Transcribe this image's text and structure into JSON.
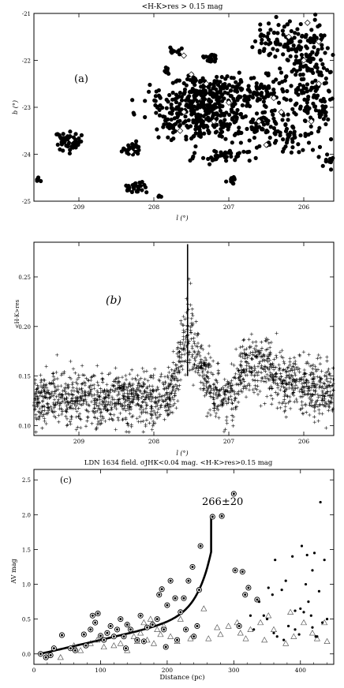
{
  "chart_data": [
    {
      "id": "a",
      "type": "scatter",
      "title": "<H-K>res >  0.15 mag",
      "panel_label": "(a)",
      "xlabel": "l (°)",
      "ylabel": "b (°)",
      "xlim": [
        209.6,
        205.6
      ],
      "ylim": [
        -25.0,
        -21.0
      ],
      "x_ticks": [
        209,
        208,
        207,
        206
      ],
      "y_ticks": [
        -21,
        -22,
        -23,
        -24,
        -25
      ],
      "clusters": [
        {
          "x": 209.55,
          "y": -24.55,
          "n": 6,
          "sx": 0.02,
          "sy": 0.04
        },
        {
          "x": 209.15,
          "y": -23.72,
          "n": 50,
          "sx": 0.09,
          "sy": 0.1
        },
        {
          "x": 208.28,
          "y": -23.9,
          "n": 26,
          "sx": 0.07,
          "sy": 0.07
        },
        {
          "x": 208.25,
          "y": -24.72,
          "n": 30,
          "sx": 0.08,
          "sy": 0.06
        },
        {
          "x": 207.9,
          "y": -24.9,
          "n": 3,
          "sx": 0.02,
          "sy": 0.02
        },
        {
          "x": 207.72,
          "y": -21.8,
          "n": 12,
          "sx": 0.04,
          "sy": 0.05
        },
        {
          "x": 207.8,
          "y": -22.2,
          "n": 8,
          "sx": 0.05,
          "sy": 0.05
        },
        {
          "x": 207.25,
          "y": -21.95,
          "n": 22,
          "sx": 0.07,
          "sy": 0.06
        },
        {
          "x": 207.45,
          "y": -22.4,
          "n": 15,
          "sx": 0.06,
          "sy": 0.05
        },
        {
          "x": 207.4,
          "y": -22.8,
          "n": 150,
          "sx": 0.32,
          "sy": 0.16
        },
        {
          "x": 207.42,
          "y": -23.3,
          "n": 200,
          "sx": 0.35,
          "sy": 0.22
        },
        {
          "x": 207.05,
          "y": -22.6,
          "n": 70,
          "sx": 0.22,
          "sy": 0.15
        },
        {
          "x": 207.1,
          "y": -24.05,
          "n": 45,
          "sx": 0.22,
          "sy": 0.09
        },
        {
          "x": 206.95,
          "y": -24.55,
          "n": 10,
          "sx": 0.04,
          "sy": 0.05
        },
        {
          "x": 206.55,
          "y": -23.3,
          "n": 90,
          "sx": 0.3,
          "sy": 0.18
        },
        {
          "x": 206.55,
          "y": -22.7,
          "n": 60,
          "sx": 0.18,
          "sy": 0.14
        },
        {
          "x": 206.3,
          "y": -21.6,
          "n": 60,
          "sx": 0.2,
          "sy": 0.18
        },
        {
          "x": 206.0,
          "y": -21.9,
          "n": 120,
          "sx": 0.22,
          "sy": 0.4
        },
        {
          "x": 205.9,
          "y": -22.8,
          "n": 100,
          "sx": 0.22,
          "sy": 0.4
        },
        {
          "x": 206.2,
          "y": -23.7,
          "n": 35,
          "sx": 0.15,
          "sy": 0.12
        },
        {
          "x": 205.75,
          "y": -23.1,
          "n": 10,
          "sx": 0.05,
          "sy": 0.05
        },
        {
          "x": 205.7,
          "y": -24.15,
          "n": 10,
          "sx": 0.05,
          "sy": 0.06
        }
      ],
      "diamonds": [
        [
          209.1,
          -23.7
        ],
        [
          207.5,
          -22.3
        ],
        [
          207.4,
          -22.8
        ],
        [
          207.6,
          -23.1
        ],
        [
          207.2,
          -23.3
        ],
        [
          207.0,
          -22.9
        ],
        [
          207.65,
          -23.5
        ],
        [
          206.6,
          -23.3
        ],
        [
          206.4,
          -22.8
        ],
        [
          206.2,
          -21.5
        ],
        [
          205.95,
          -21.2
        ],
        [
          206.0,
          -22.0
        ],
        [
          205.8,
          -22.5
        ],
        [
          206.3,
          -23.1
        ],
        [
          205.9,
          -23.3
        ],
        [
          207.6,
          -21.9
        ],
        [
          206.5,
          -23.8
        ],
        [
          208.3,
          -23.95
        ],
        [
          207.3,
          -22.5
        ],
        [
          205.8,
          -21.6
        ]
      ]
    },
    {
      "id": "b",
      "type": "scatter",
      "panel_label": "(b)",
      "xlabel": "l (°)",
      "ylabel": "<H-K>res",
      "xlim": [
        209.6,
        205.6
      ],
      "ylim": [
        0.09,
        0.285
      ],
      "x_ticks": [
        209,
        208,
        207,
        206
      ],
      "y_ticks": [
        0.1,
        0.15,
        0.2,
        0.25
      ],
      "baseline": 0.127,
      "baseline_scatter": 0.013,
      "n_points": 1900,
      "bumps": [
        {
          "l": 207.55,
          "amp": 0.09,
          "width": 0.1
        },
        {
          "l": 207.35,
          "amp": 0.03,
          "width": 0.1
        },
        {
          "l": 206.65,
          "amp": 0.045,
          "width": 0.2
        },
        {
          "l": 206.1,
          "amp": 0.02,
          "width": 0.35
        }
      ],
      "spike": {
        "l": 207.55,
        "top": 0.283,
        "bottom": 0.15
      }
    },
    {
      "id": "c",
      "type": "scatter",
      "title": "LDN 1634 field. σJHK<0.04 mag. <H-K>res>0.15 mag",
      "panel_label": "(c)",
      "annotation": "266±20",
      "xlabel": "Distance (pc)",
      "ylabel": "AV mag",
      "xlim": [
        0,
        450
      ],
      "ylim": [
        -0.15,
        2.65
      ],
      "x_ticks": [
        0,
        100,
        200,
        300,
        400
      ],
      "y_ticks": [
        0.0,
        0.5,
        1.0,
        1.5,
        2.0,
        2.5
      ],
      "curve": {
        "d0": 10,
        "d_end": 266,
        "a": 0.01,
        "b": 0.0024,
        "asym": 292,
        "cx": 5
      },
      "stars": [
        [
          10,
          0.0
        ],
        [
          18,
          -0.05
        ],
        [
          25,
          -0.02
        ],
        [
          30,
          0.08
        ],
        [
          42,
          0.27
        ],
        [
          55,
          0.08
        ],
        [
          62,
          0.05
        ],
        [
          75,
          0.28
        ],
        [
          78,
          0.12
        ],
        [
          85,
          0.35
        ],
        [
          88,
          0.55
        ],
        [
          92,
          0.45
        ],
        [
          96,
          0.58
        ],
        [
          100,
          0.26
        ],
        [
          105,
          0.2
        ],
        [
          110,
          0.3
        ],
        [
          115,
          0.4
        ],
        [
          120,
          0.25
        ],
        [
          125,
          0.35
        ],
        [
          130,
          0.5
        ],
        [
          135,
          0.25
        ],
        [
          138,
          0.08
        ],
        [
          140,
          0.42
        ],
        [
          145,
          0.35
        ],
        [
          155,
          0.2
        ],
        [
          160,
          0.55
        ],
        [
          165,
          0.18
        ],
        [
          170,
          0.38
        ],
        [
          178,
          0.42
        ],
        [
          185,
          0.5
        ],
        [
          188,
          0.85
        ],
        [
          192,
          0.93
        ],
        [
          195,
          0.35
        ],
        [
          198,
          0.1
        ],
        [
          200,
          0.7
        ],
        [
          205,
          1.05
        ],
        [
          212,
          0.8
        ],
        [
          215,
          0.2
        ],
        [
          220,
          0.6
        ],
        [
          225,
          0.8
        ],
        [
          228,
          0.35
        ],
        [
          232,
          1.05
        ],
        [
          238,
          1.25
        ],
        [
          240,
          0.25
        ],
        [
          245,
          0.4
        ],
        [
          250,
          1.55
        ],
        [
          268,
          1.97
        ],
        [
          282,
          1.98
        ],
        [
          300,
          2.3
        ],
        [
          302,
          1.2
        ],
        [
          308,
          0.4
        ],
        [
          313,
          1.18
        ],
        [
          317,
          0.85
        ],
        [
          322,
          0.95
        ],
        [
          335,
          0.78
        ],
        [
          248,
          0.92
        ]
      ],
      "dots": [
        [
          350,
          0.5
        ],
        [
          352,
          0.95
        ],
        [
          358,
          0.85
        ],
        [
          360,
          0.3
        ],
        [
          365,
          0.25
        ],
        [
          372,
          0.92
        ],
        [
          378,
          1.05
        ],
        [
          382,
          0.4
        ],
        [
          388,
          1.4
        ],
        [
          392,
          0.35
        ],
        [
          398,
          0.28
        ],
        [
          400,
          0.65
        ],
        [
          402,
          1.55
        ],
        [
          405,
          0.6
        ],
        [
          408,
          1.0
        ],
        [
          410,
          1.42
        ],
        [
          412,
          0.75
        ],
        [
          416,
          0.55
        ],
        [
          418,
          0.38
        ],
        [
          421,
          1.45
        ],
        [
          423,
          0.25
        ],
        [
          425,
          0.25
        ],
        [
          428,
          0.9
        ],
        [
          430,
          2.18
        ],
        [
          433,
          0.45
        ],
        [
          436,
          1.35
        ],
        [
          362,
          1.35
        ],
        [
          345,
          0.55
        ],
        [
          392,
          0.62
        ],
        [
          375,
          0.2
        ],
        [
          418,
          1.2
        ],
        [
          440,
          0.5
        ],
        [
          338,
          0.75
        ],
        [
          330,
          0.35
        ],
        [
          325,
          0.55
        ]
      ],
      "triangles": [
        [
          20,
          -0.02
        ],
        [
          40,
          -0.05
        ],
        [
          60,
          0.12
        ],
        [
          70,
          0.05
        ],
        [
          85,
          0.15
        ],
        [
          95,
          0.2
        ],
        [
          105,
          0.1
        ],
        [
          120,
          0.12
        ],
        [
          130,
          0.15
        ],
        [
          140,
          0.05
        ],
        [
          150,
          0.25
        ],
        [
          155,
          0.18
        ],
        [
          160,
          0.3
        ],
        [
          165,
          0.45
        ],
        [
          170,
          0.2
        ],
        [
          175,
          0.5
        ],
        [
          180,
          0.15
        ],
        [
          185,
          0.35
        ],
        [
          190,
          0.28
        ],
        [
          195,
          0.4
        ],
        [
          205,
          0.25
        ],
        [
          215,
          0.18
        ],
        [
          220,
          0.5
        ],
        [
          235,
          0.22
        ],
        [
          255,
          0.65
        ],
        [
          262,
          0.22
        ],
        [
          275,
          0.38
        ],
        [
          280,
          0.28
        ],
        [
          292,
          0.4
        ],
        [
          305,
          0.45
        ],
        [
          310,
          0.3
        ],
        [
          318,
          0.22
        ],
        [
          325,
          0.35
        ],
        [
          340,
          0.45
        ],
        [
          346,
          0.2
        ],
        [
          352,
          0.55
        ],
        [
          360,
          0.35
        ],
        [
          378,
          0.15
        ],
        [
          385,
          0.6
        ],
        [
          390,
          0.25
        ],
        [
          405,
          0.45
        ],
        [
          418,
          0.3
        ],
        [
          425,
          0.22
        ],
        [
          436,
          0.45
        ],
        [
          440,
          0.18
        ]
      ]
    }
  ]
}
